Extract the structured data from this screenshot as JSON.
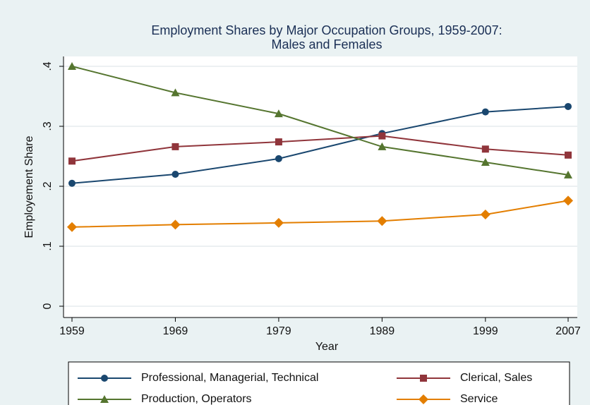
{
  "chart_data": {
    "type": "line",
    "title": [
      "Employment Shares by Major Occupation Groups, 1959-2007:",
      "Males and Females"
    ],
    "x_label": "Year",
    "y_label": "Employement Share",
    "x": [
      1959,
      1969,
      1979,
      1989,
      1999,
      2007
    ],
    "xlim": [
      1959,
      2007
    ],
    "xticks": [
      1959,
      1969,
      1979,
      1989,
      1999,
      2007
    ],
    "ylim": [
      0,
      0.4
    ],
    "yticks": [
      0,
      {
        "value": 0.1,
        "label": ".1"
      },
      {
        "value": 0.2,
        "label": ".2"
      },
      {
        "value": 0.3,
        "label": ".3"
      },
      {
        "value": 0.4,
        "label": ".4"
      }
    ],
    "grid": true,
    "legend": "bottom",
    "series": [
      {
        "name": "Professional, Managerial, Technical",
        "color": "#1a476f",
        "marker": "circle",
        "values": [
          0.205,
          0.22,
          0.246,
          0.288,
          0.324,
          0.333
        ]
      },
      {
        "name": "Clerical, Sales",
        "color": "#90353b",
        "marker": "square",
        "values": [
          0.242,
          0.266,
          0.274,
          0.284,
          0.262,
          0.252
        ]
      },
      {
        "name": "Production, Operators",
        "color": "#55752f",
        "marker": "triangle",
        "values": [
          0.4,
          0.356,
          0.321,
          0.266,
          0.24,
          0.219
        ]
      },
      {
        "name": "Service",
        "color": "#e37e00",
        "marker": "diamond",
        "values": [
          0.132,
          0.136,
          0.139,
          0.142,
          0.153,
          0.176
        ]
      }
    ]
  }
}
